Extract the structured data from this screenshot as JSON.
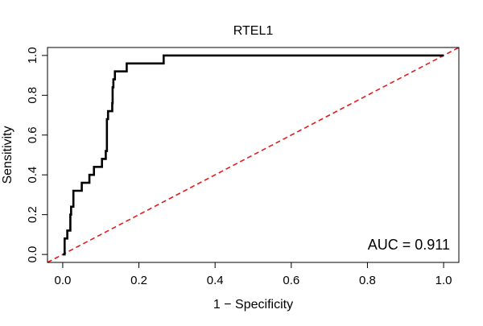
{
  "chart_data": {
    "type": "line",
    "title": "RTEL1",
    "xlabel": "1 − Specificity",
    "ylabel": "Sensitivity",
    "xlim": [
      0.0,
      1.0
    ],
    "ylim": [
      0.0,
      1.0
    ],
    "x_ticks": [
      0.0,
      0.2,
      0.4,
      0.6,
      0.8,
      1.0
    ],
    "x_tick_labels": [
      "0.0",
      "0.2",
      "0.4",
      "0.6",
      "0.8",
      "1.0"
    ],
    "y_ticks": [
      0.0,
      0.2,
      0.4,
      0.6,
      0.8,
      1.0
    ],
    "y_tick_labels": [
      "0.0",
      "0.2",
      "0.4",
      "0.6",
      "0.8",
      "1.0"
    ],
    "grid": false,
    "series": [
      {
        "name": "ROC curve",
        "color": "#000000",
        "style": "solid",
        "points": [
          [
            0.0,
            0.0
          ],
          [
            0.005,
            0.0
          ],
          [
            0.005,
            0.08
          ],
          [
            0.012,
            0.08
          ],
          [
            0.012,
            0.12
          ],
          [
            0.02,
            0.12
          ],
          [
            0.02,
            0.2
          ],
          [
            0.022,
            0.2
          ],
          [
            0.022,
            0.24
          ],
          [
            0.028,
            0.24
          ],
          [
            0.028,
            0.32
          ],
          [
            0.05,
            0.32
          ],
          [
            0.05,
            0.36
          ],
          [
            0.07,
            0.36
          ],
          [
            0.07,
            0.4
          ],
          [
            0.082,
            0.4
          ],
          [
            0.082,
            0.44
          ],
          [
            0.103,
            0.44
          ],
          [
            0.103,
            0.48
          ],
          [
            0.113,
            0.48
          ],
          [
            0.113,
            0.52
          ],
          [
            0.116,
            0.52
          ],
          [
            0.116,
            0.68
          ],
          [
            0.119,
            0.68
          ],
          [
            0.119,
            0.72
          ],
          [
            0.13,
            0.72
          ],
          [
            0.13,
            0.76
          ],
          [
            0.131,
            0.76
          ],
          [
            0.131,
            0.84
          ],
          [
            0.133,
            0.84
          ],
          [
            0.133,
            0.88
          ],
          [
            0.137,
            0.88
          ],
          [
            0.137,
            0.92
          ],
          [
            0.168,
            0.92
          ],
          [
            0.168,
            0.96
          ],
          [
            0.265,
            0.96
          ],
          [
            0.265,
            1.0
          ],
          [
            1.0,
            1.0
          ]
        ]
      },
      {
        "name": "reference diagonal",
        "color": "#e41a1c",
        "style": "dashed",
        "points": [
          [
            -0.04,
            -0.04
          ],
          [
            1.04,
            1.04
          ]
        ]
      }
    ],
    "annotations": [
      {
        "text": "AUC = 0.911",
        "position": "bottom-right"
      }
    ]
  }
}
